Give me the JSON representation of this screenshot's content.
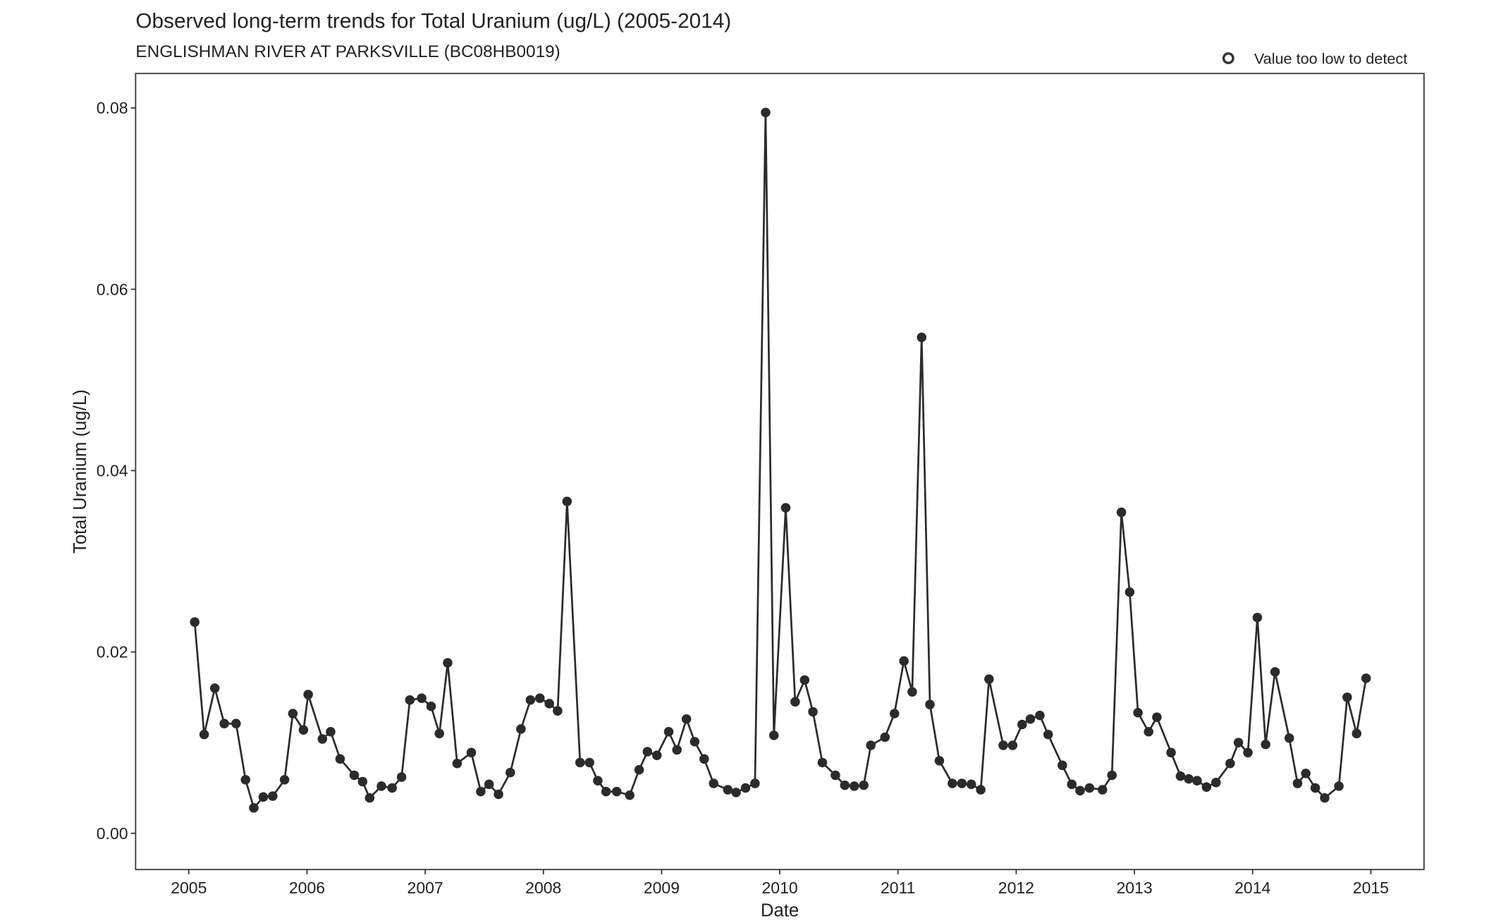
{
  "chart_data": {
    "type": "line",
    "title": "Observed long-term trends for Total Uranium (ug/L) (2005-2014)",
    "subtitle": "ENGLISHMAN RIVER AT PARKSVILLE (BC08HB0019)",
    "xlabel": "Date",
    "ylabel": "Total Uranium (ug/L)",
    "xlim": [
      2004.55,
      2015.45
    ],
    "ylim": [
      -0.004,
      0.0838
    ],
    "x_ticks": [
      "2005",
      "2006",
      "2007",
      "2008",
      "2009",
      "2010",
      "2011",
      "2012",
      "2013",
      "2014",
      "2015"
    ],
    "y_ticks": [
      "0.00",
      "0.02",
      "0.04",
      "0.06",
      "0.08"
    ],
    "legend": {
      "position": "top-right",
      "entries": [
        "Value too low to detect"
      ]
    },
    "grid": false,
    "series": [
      {
        "name": "Total Uranium",
        "color": "#2b2b2b",
        "points": [
          [
            2005.05,
            0.0233
          ],
          [
            2005.13,
            0.0109
          ],
          [
            2005.22,
            0.016
          ],
          [
            2005.3,
            0.0121
          ],
          [
            2005.4,
            0.0121
          ],
          [
            2005.48,
            0.0059
          ],
          [
            2005.55,
            0.0028
          ],
          [
            2005.63,
            0.004
          ],
          [
            2005.71,
            0.0041
          ],
          [
            2005.81,
            0.0059
          ],
          [
            2005.88,
            0.0132
          ],
          [
            2005.97,
            0.0114
          ],
          [
            2006.01,
            0.0153
          ],
          [
            2006.13,
            0.0104
          ],
          [
            2006.2,
            0.0112
          ],
          [
            2006.28,
            0.0082
          ],
          [
            2006.4,
            0.0064
          ],
          [
            2006.47,
            0.0057
          ],
          [
            2006.53,
            0.0039
          ],
          [
            2006.63,
            0.0052
          ],
          [
            2006.72,
            0.005
          ],
          [
            2006.8,
            0.0062
          ],
          [
            2006.87,
            0.0147
          ],
          [
            2006.97,
            0.0149
          ],
          [
            2007.05,
            0.014
          ],
          [
            2007.12,
            0.011
          ],
          [
            2007.19,
            0.0188
          ],
          [
            2007.27,
            0.0077
          ],
          [
            2007.39,
            0.0089
          ],
          [
            2007.47,
            0.0046
          ],
          [
            2007.54,
            0.0054
          ],
          [
            2007.62,
            0.0043
          ],
          [
            2007.72,
            0.0067
          ],
          [
            2007.81,
            0.0115
          ],
          [
            2007.89,
            0.0147
          ],
          [
            2007.97,
            0.0149
          ],
          [
            2008.05,
            0.0143
          ],
          [
            2008.12,
            0.0135
          ],
          [
            2008.2,
            0.0366
          ],
          [
            2008.31,
            0.0078
          ],
          [
            2008.39,
            0.0078
          ],
          [
            2008.46,
            0.0058
          ],
          [
            2008.53,
            0.0046
          ],
          [
            2008.62,
            0.0046
          ],
          [
            2008.73,
            0.0042
          ],
          [
            2008.81,
            0.007
          ],
          [
            2008.88,
            0.009
          ],
          [
            2008.96,
            0.0086
          ],
          [
            2009.06,
            0.0112
          ],
          [
            2009.13,
            0.0092
          ],
          [
            2009.21,
            0.0126
          ],
          [
            2009.28,
            0.0101
          ],
          [
            2009.36,
            0.0082
          ],
          [
            2009.44,
            0.0055
          ],
          [
            2009.56,
            0.0048
          ],
          [
            2009.63,
            0.0045
          ],
          [
            2009.71,
            0.005
          ],
          [
            2009.79,
            0.0055
          ],
          [
            2009.88,
            0.0795
          ],
          [
            2009.95,
            0.0108
          ],
          [
            2010.05,
            0.0359
          ],
          [
            2010.13,
            0.0145
          ],
          [
            2010.21,
            0.0169
          ],
          [
            2010.28,
            0.0134
          ],
          [
            2010.36,
            0.0078
          ],
          [
            2010.47,
            0.0064
          ],
          [
            2010.55,
            0.0053
          ],
          [
            2010.63,
            0.0052
          ],
          [
            2010.71,
            0.0053
          ],
          [
            2010.77,
            0.0097
          ],
          [
            2010.89,
            0.0106
          ],
          [
            2010.97,
            0.0132
          ],
          [
            2011.05,
            0.019
          ],
          [
            2011.12,
            0.0156
          ],
          [
            2011.2,
            0.0547
          ],
          [
            2011.27,
            0.0142
          ],
          [
            2011.35,
            0.008
          ],
          [
            2011.46,
            0.0055
          ],
          [
            2011.54,
            0.0055
          ],
          [
            2011.62,
            0.0054
          ],
          [
            2011.7,
            0.0048
          ],
          [
            2011.77,
            0.017
          ],
          [
            2011.89,
            0.0097
          ],
          [
            2011.97,
            0.0097
          ],
          [
            2012.05,
            0.012
          ],
          [
            2012.12,
            0.0126
          ],
          [
            2012.2,
            0.013
          ],
          [
            2012.27,
            0.0109
          ],
          [
            2012.39,
            0.0075
          ],
          [
            2012.47,
            0.0054
          ],
          [
            2012.54,
            0.0047
          ],
          [
            2012.62,
            0.005
          ],
          [
            2012.73,
            0.0048
          ],
          [
            2012.81,
            0.0064
          ],
          [
            2012.89,
            0.0354
          ],
          [
            2012.96,
            0.0266
          ],
          [
            2013.03,
            0.0133
          ],
          [
            2013.12,
            0.0112
          ],
          [
            2013.19,
            0.0128
          ],
          [
            2013.31,
            0.0089
          ],
          [
            2013.39,
            0.0063
          ],
          [
            2013.46,
            0.006
          ],
          [
            2013.53,
            0.0058
          ],
          [
            2013.61,
            0.0051
          ],
          [
            2013.69,
            0.0056
          ],
          [
            2013.81,
            0.0077
          ],
          [
            2013.88,
            0.01
          ],
          [
            2013.96,
            0.0089
          ],
          [
            2014.04,
            0.0238
          ],
          [
            2014.11,
            0.0098
          ],
          [
            2014.19,
            0.0178
          ],
          [
            2014.31,
            0.0105
          ],
          [
            2014.38,
            0.0055
          ],
          [
            2014.45,
            0.0066
          ],
          [
            2014.53,
            0.005
          ],
          [
            2014.61,
            0.0039
          ],
          [
            2014.73,
            0.0052
          ],
          [
            2014.8,
            0.015
          ],
          [
            2014.88,
            0.011
          ],
          [
            2014.96,
            0.0171
          ]
        ]
      }
    ]
  }
}
